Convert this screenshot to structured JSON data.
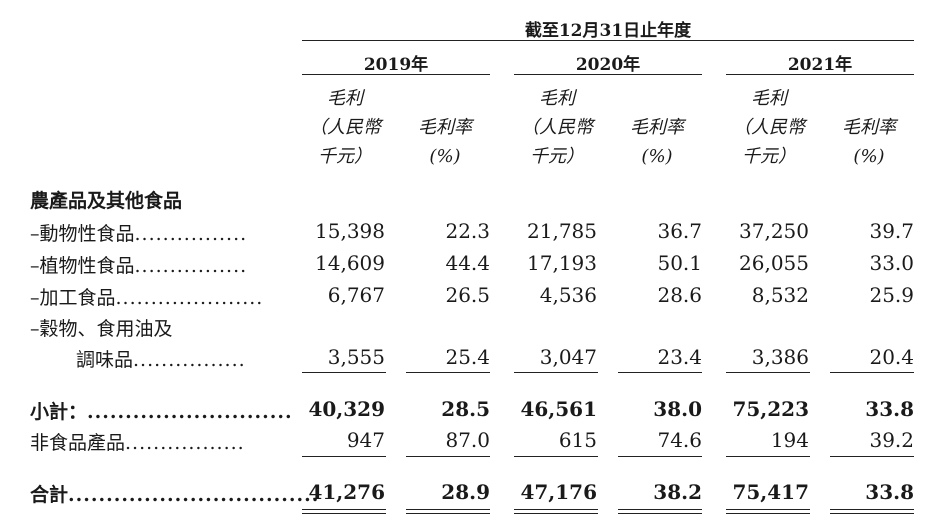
{
  "period_header": "截至12月31日止年度",
  "years": [
    "2019年",
    "2020年",
    "2021年"
  ],
  "column_headers": {
    "gross_profit": [
      "毛利",
      "（人民幣",
      "千元）"
    ],
    "gross_margin": [
      "毛利率",
      "",
      "(%)"
    ]
  },
  "section_title": "農產品及其他食品",
  "rows": [
    {
      "label": "–動物性食品",
      "leader": "................",
      "values": [
        "15,398",
        "22.3",
        "21,785",
        "36.7",
        "37,250",
        "39.7"
      ]
    },
    {
      "label": "–植物性食品",
      "leader": "................",
      "values": [
        "14,609",
        "44.4",
        "17,193",
        "50.1",
        "26,055",
        "33.0"
      ]
    },
    {
      "label": "–加工食品",
      "leader": ".....................",
      "values": [
        "6,767",
        "26.5",
        "4,536",
        "28.6",
        "8,532",
        "25.9"
      ]
    },
    {
      "label": "–穀物、食用油及",
      "label2": "調味品",
      "leader": "................",
      "values": [
        "3,555",
        "25.4",
        "3,047",
        "23.4",
        "3,386",
        "20.4"
      ]
    },
    {
      "label": "小計：",
      "leader": "...........................",
      "bold": true,
      "values": [
        "40,329",
        "28.5",
        "46,561",
        "38.0",
        "75,223",
        "33.8"
      ]
    },
    {
      "label": "非食品產品",
      "leader": ".................",
      "values": [
        "947",
        "87.0",
        "615",
        "74.6",
        "194",
        "39.2"
      ]
    },
    {
      "label": "合計",
      "leader": ".................................",
      "bold": true,
      "values": [
        "41,276",
        "28.9",
        "47,176",
        "38.2",
        "75,417",
        "33.8"
      ]
    }
  ]
}
